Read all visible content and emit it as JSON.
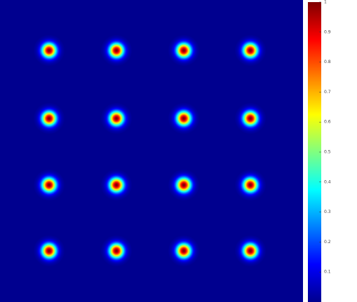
{
  "chart_data": {
    "type": "heatmap",
    "colormap": "jet",
    "values": [
      [
        1,
        1,
        1,
        1
      ],
      [
        1,
        1,
        1,
        1
      ],
      [
        1,
        1,
        1,
        1
      ],
      [
        1,
        1,
        1,
        1
      ]
    ],
    "clim": [
      0,
      1
    ],
    "cticks": [
      0.1,
      0.2,
      0.3,
      0.4,
      0.5,
      0.6,
      0.7,
      0.8,
      0.9,
      1
    ]
  }
}
